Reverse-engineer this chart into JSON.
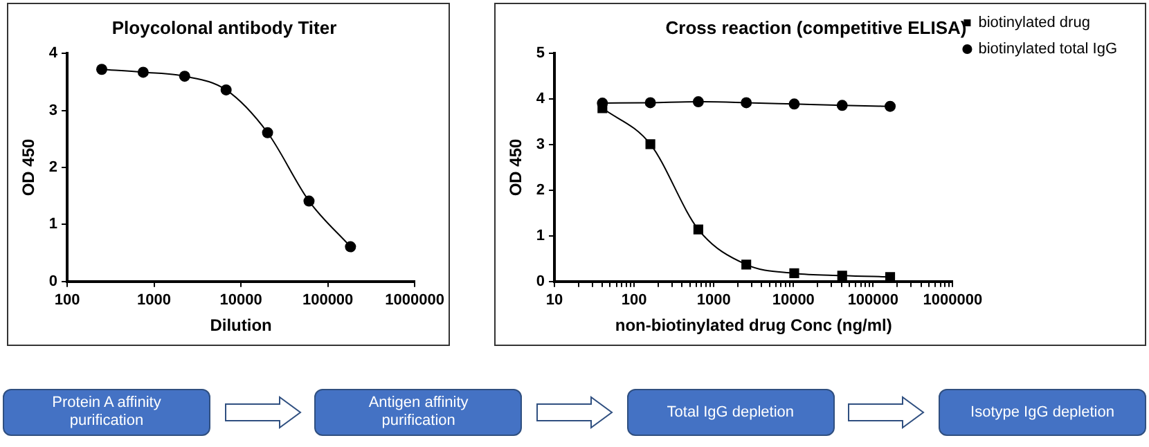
{
  "chart_data": [
    {
      "type": "line",
      "title": "Ploycolonal antibody Titer",
      "xlabel": "Dilution",
      "ylabel": "OD 450",
      "log": "x",
      "marker": "circle",
      "color": "#000000",
      "x": [
        250,
        750,
        2250,
        6750,
        20250,
        60750,
        182250
      ],
      "values": [
        3.72,
        3.67,
        3.6,
        3.36,
        2.61,
        1.41,
        0.61
      ],
      "xlim": [
        100,
        1000000
      ],
      "xticks": [
        100,
        1000,
        10000,
        100000,
        1000000
      ],
      "ylim": [
        0,
        4
      ],
      "yticks": [
        0,
        1,
        2,
        3,
        4
      ],
      "grid": false,
      "legend": false
    },
    {
      "type": "line",
      "title": "Cross reaction (competitive ELISA)",
      "xlabel": "non-biotinylated drug Conc (ng/ml)",
      "ylabel": "OD 450",
      "log": "x",
      "legend": "top right",
      "grid": false,
      "x": [
        40,
        160,
        640,
        2560,
        10240,
        40960,
        163840
      ],
      "series": [
        {
          "name": "biotinylated total IgG",
          "color": "#000000",
          "marker": "circle",
          "values": [
            3.91,
            3.92,
            3.94,
            3.92,
            3.89,
            3.86,
            3.84
          ]
        },
        {
          "name": "biotinylated drug",
          "color": "#000000",
          "marker": "square",
          "values": [
            3.8,
            3.01,
            1.14,
            0.37,
            0.18,
            0.13,
            0.1
          ]
        }
      ],
      "xlim": [
        10,
        1000000
      ],
      "xticks": [
        10,
        {
          "value": 20,
          "label": null
        },
        {
          "value": 30,
          "label": null
        },
        {
          "value": 40,
          "label": null
        },
        {
          "value": 50,
          "label": null
        },
        {
          "value": 60,
          "label": null
        },
        {
          "value": 70,
          "label": null
        },
        {
          "value": 80,
          "label": null
        },
        {
          "value": 90,
          "label": null
        },
        100,
        {
          "value": 200,
          "label": null
        },
        {
          "value": 300,
          "label": null
        },
        {
          "value": 400,
          "label": null
        },
        {
          "value": 500,
          "label": null
        },
        {
          "value": 600,
          "label": null
        },
        {
          "value": 700,
          "label": null
        },
        {
          "value": 800,
          "label": null
        },
        {
          "value": 900,
          "label": null
        },
        1000,
        {
          "value": 2000,
          "label": null
        },
        {
          "value": 3000,
          "label": null
        },
        {
          "value": 4000,
          "label": null
        },
        {
          "value": 5000,
          "label": null
        },
        {
          "value": 6000,
          "label": null
        },
        {
          "value": 7000,
          "label": null
        },
        {
          "value": 8000,
          "label": null
        },
        {
          "value": 9000,
          "label": null
        },
        10000,
        {
          "value": 20000,
          "label": null
        },
        {
          "value": 30000,
          "label": null
        },
        {
          "value": 40000,
          "label": null
        },
        {
          "value": 50000,
          "label": null
        },
        {
          "value": 60000,
          "label": null
        },
        {
          "value": 70000,
          "label": null
        },
        {
          "value": 80000,
          "label": null
        },
        {
          "value": 90000,
          "label": null
        },
        100000,
        {
          "value": 200000,
          "label": null
        },
        {
          "value": 300000,
          "label": null
        },
        {
          "value": 400000,
          "label": null
        },
        {
          "value": 500000,
          "label": null
        },
        {
          "value": 600000,
          "label": null
        },
        {
          "value": 700000,
          "label": null
        },
        {
          "value": 800000,
          "label": null
        },
        {
          "value": 900000,
          "label": null
        },
        1000000
      ],
      "ylim": [
        0,
        5
      ],
      "yticks": [
        0,
        1,
        2,
        3,
        4,
        5
      ]
    },
    {
      "type": "other",
      "color": "#4472c4",
      "annotations": [
        "Protein A affinity purification",
        "Antigen affinity purification",
        "Total IgG depletion",
        "Isotype IgG depletion"
      ]
    }
  ]
}
